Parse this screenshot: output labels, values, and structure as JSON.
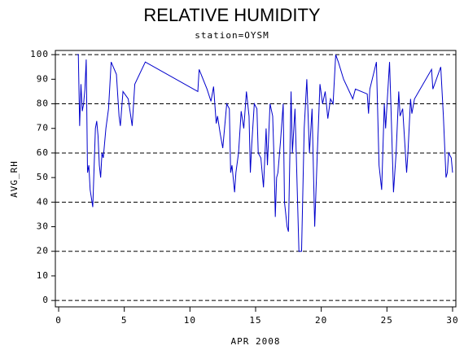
{
  "chart_data": {
    "type": "line",
    "title": "RELATIVE HUMIDITY",
    "subtitle": "station=OYSM",
    "x_label": "APR 2008",
    "y_label": "AVG_RH",
    "xlim": [
      -0.25,
      30.25
    ],
    "xticks": [
      0,
      5,
      10,
      15,
      20,
      25,
      30
    ],
    "ylim": [
      -2.6,
      101.7
    ],
    "yticks": [
      0,
      10,
      20,
      30,
      40,
      50,
      60,
      70,
      80,
      90,
      100
    ],
    "ygrid": [
      0,
      20,
      40,
      60,
      80,
      100
    ],
    "grid_style": "dashed",
    "series": [
      {
        "color": "#0000cc",
        "x": [
          1.4,
          1.5,
          1.6,
          1.7,
          1.8,
          1.9,
          2.0,
          2.1,
          2.2,
          2.3,
          2.4,
          2.6,
          2.8,
          2.9,
          3.0,
          3.1,
          3.2,
          3.3,
          3.4,
          3.6,
          3.8,
          4.0,
          4.4,
          4.6,
          4.7,
          4.9,
          5.3,
          5.6,
          5.8,
          6.6,
          10.6,
          10.7,
          11.3,
          11.6,
          11.8,
          12.0,
          12.1,
          12.3,
          12.5,
          12.8,
          13.0,
          13.1,
          13.2,
          13.4,
          13.5,
          13.7,
          13.9,
          14.1,
          14.3,
          14.5,
          14.6,
          14.7,
          14.9,
          15.1,
          15.2,
          15.4,
          15.6,
          15.8,
          15.9,
          16.1,
          16.3,
          16.4,
          16.5,
          16.6,
          16.7,
          16.9,
          17.1,
          17.2,
          17.4,
          17.5,
          17.7,
          17.8,
          18.0,
          18.3,
          18.5,
          18.7,
          18.9,
          19.1,
          19.3,
          19.5,
          19.7,
          19.9,
          20.1,
          20.3,
          20.5,
          20.7,
          20.9,
          21.1,
          21.3,
          21.7,
          22.4,
          22.6,
          23.5,
          23.6,
          23.7,
          24.2,
          24.4,
          24.6,
          24.8,
          24.9,
          25.2,
          25.3,
          25.5,
          25.7,
          25.9,
          26.0,
          26.2,
          26.5,
          26.6,
          26.8,
          26.9,
          27.1,
          28.4,
          28.5,
          29.1,
          29.3,
          29.5,
          29.6,
          29.7,
          29.9,
          30.0
        ],
        "values": [
          100,
          100,
          71,
          88,
          77,
          80,
          86,
          98,
          52,
          55,
          45,
          38,
          70,
          73,
          67,
          55,
          50,
          60,
          58,
          70,
          78,
          97,
          92,
          75,
          71,
          85,
          82,
          71,
          88,
          97,
          85,
          94,
          86,
          81,
          87,
          72,
          75,
          68,
          62,
          80,
          78,
          52,
          55,
          44,
          52,
          60,
          77,
          70,
          85,
          75,
          52,
          63,
          80,
          78,
          60,
          58,
          46,
          70,
          55,
          80,
          75,
          58,
          34,
          50,
          52,
          65,
          80,
          40,
          30,
          28,
          85,
          60,
          78,
          20,
          20,
          70,
          90,
          60,
          78,
          30,
          60,
          88,
          80,
          85,
          74,
          82,
          80,
          100,
          97,
          90,
          82,
          86,
          84,
          76,
          86,
          97,
          55,
          45,
          80,
          70,
          97,
          80,
          44,
          60,
          85,
          75,
          78,
          52,
          60,
          82,
          76,
          82,
          94,
          86,
          95,
          75,
          50,
          52,
          60,
          58,
          52
        ]
      }
    ]
  }
}
